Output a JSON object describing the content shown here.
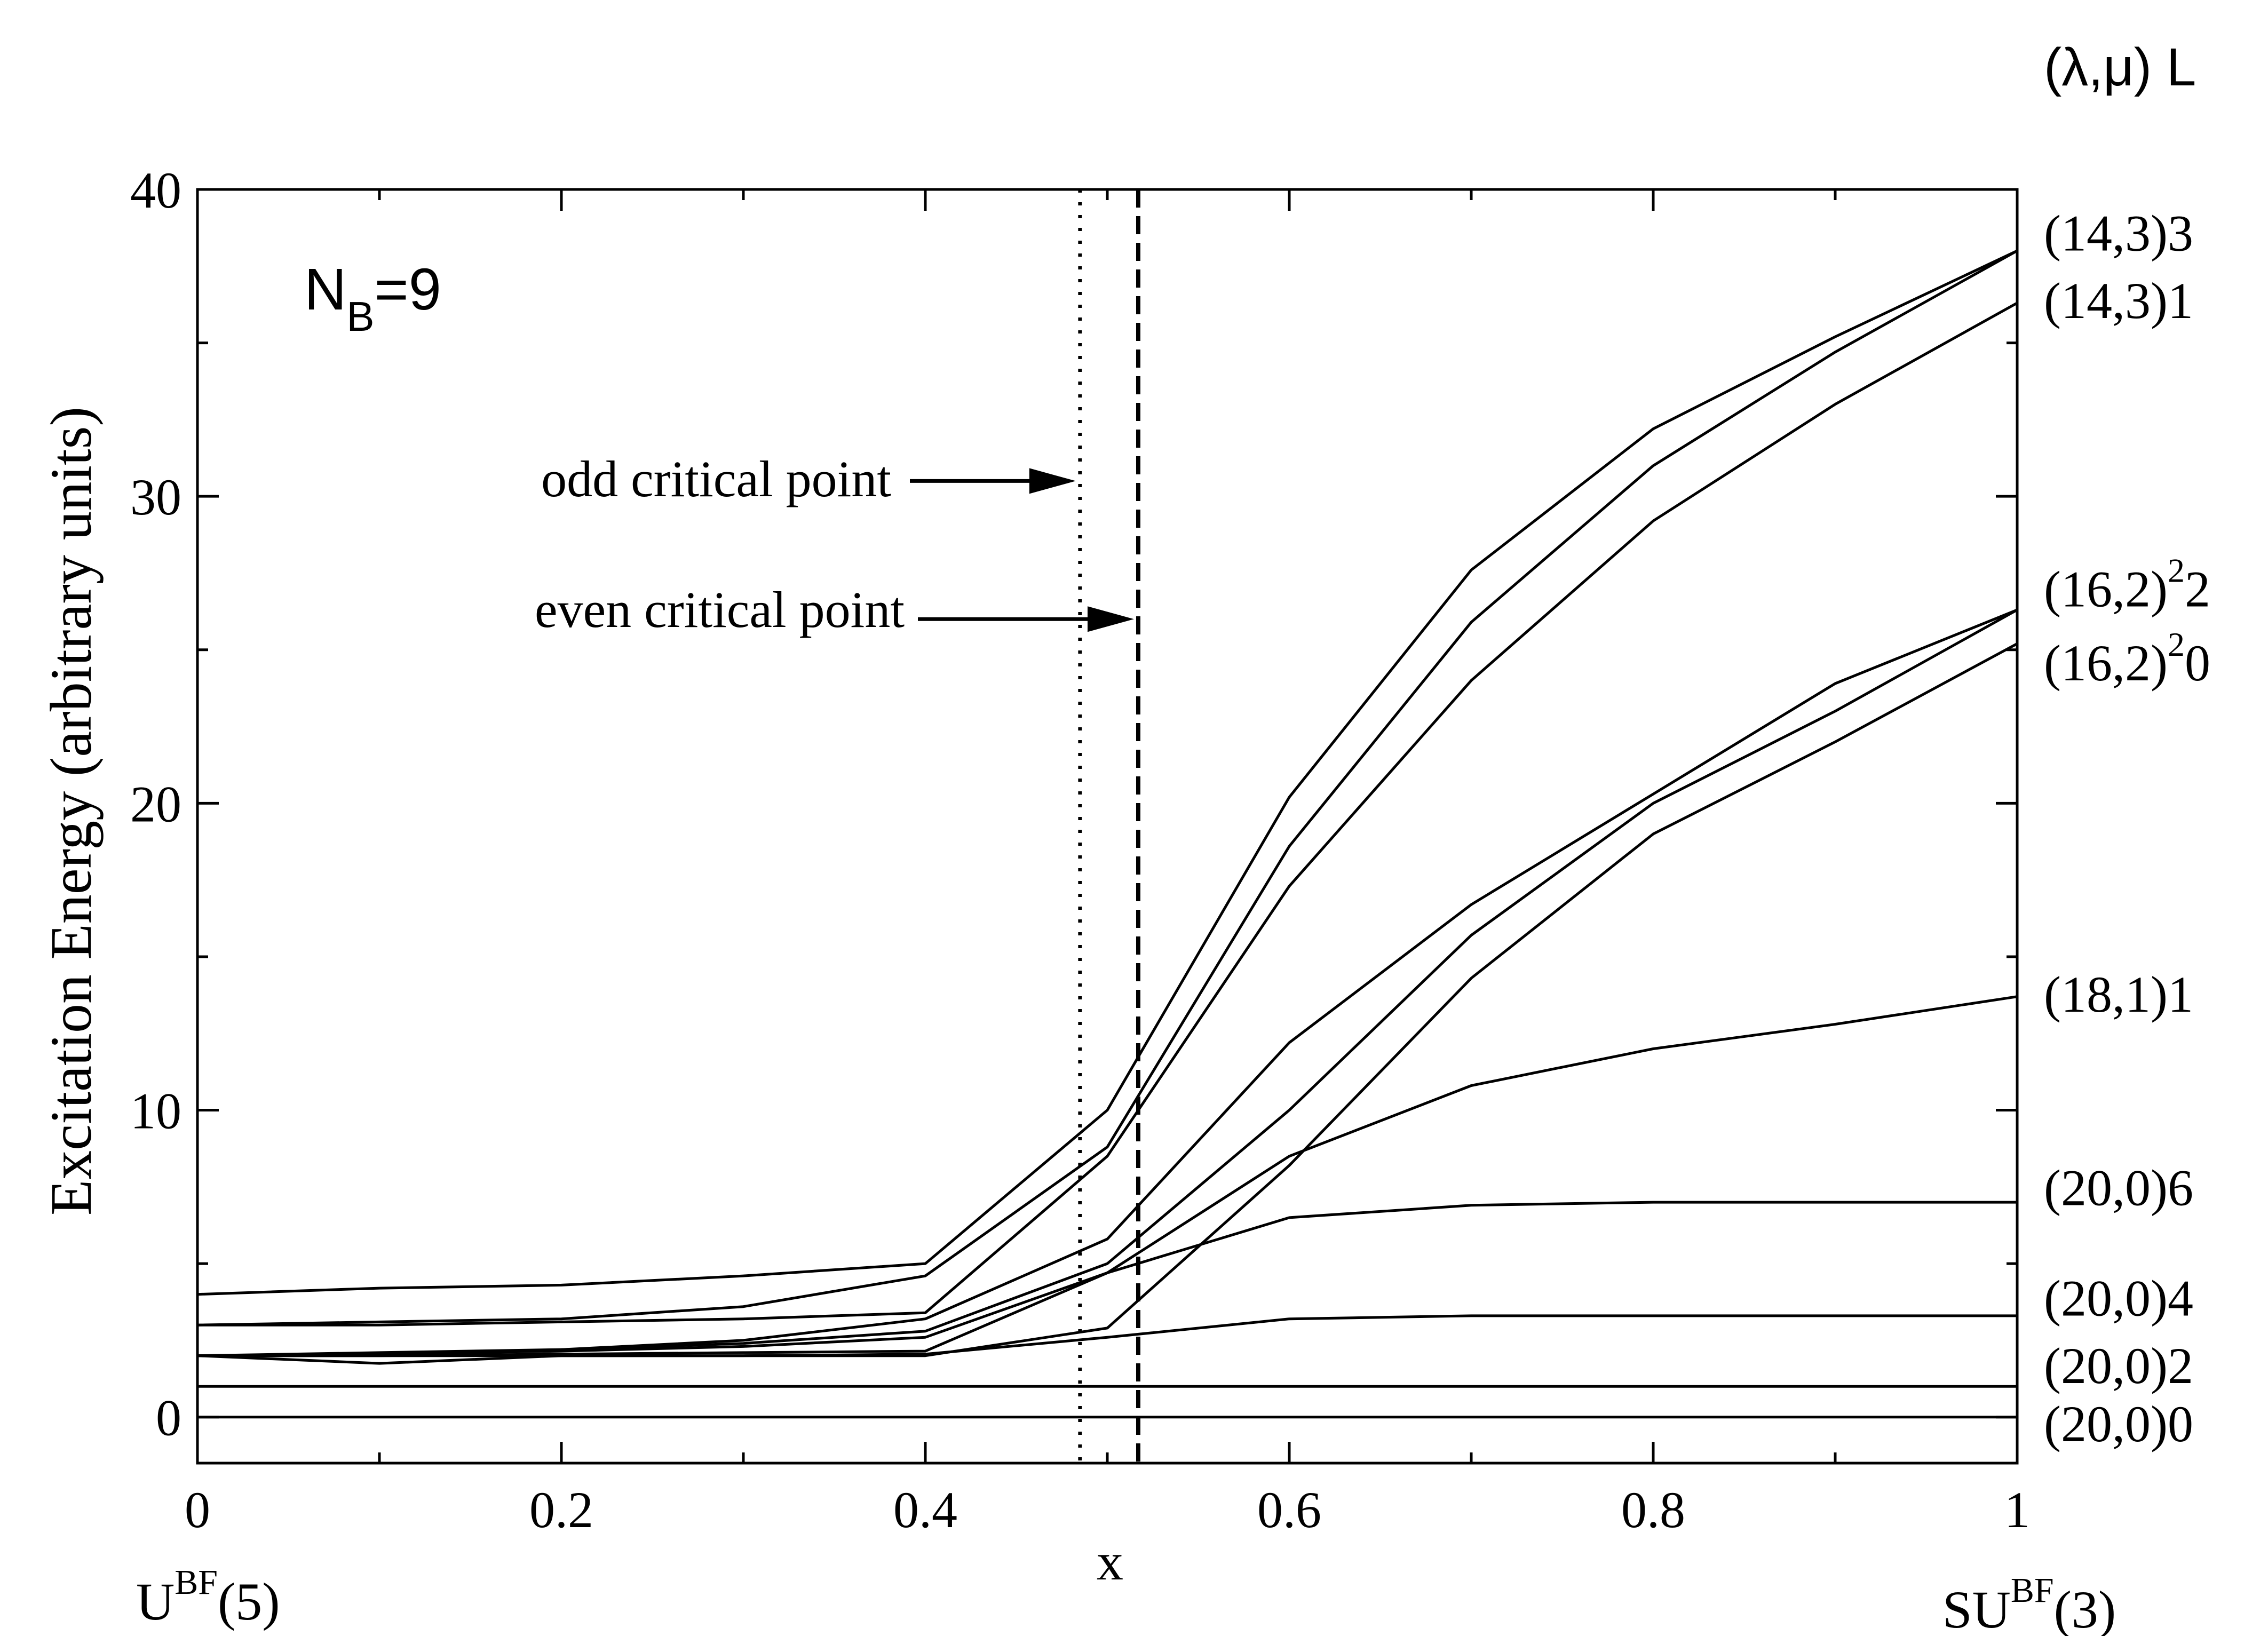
{
  "chart_data": {
    "type": "line",
    "xlabel": "x",
    "ylabel": "Excitation Energy  (arbitrary units)",
    "xlim": [
      0,
      1
    ],
    "ylim": [
      -1.5,
      40
    ],
    "x_ticks": [
      0,
      0.2,
      0.4,
      0.6,
      0.8,
      1
    ],
    "x_tick_labels": [
      "0",
      "0.2",
      "0.4",
      "0.6",
      "0.8",
      "1"
    ],
    "y_ticks": [
      0,
      10,
      20,
      30,
      40
    ],
    "y_tick_labels": [
      "0",
      "10",
      "20",
      "30",
      "40"
    ],
    "grid": false,
    "annotation_nb": "N",
    "annotation_nb_sub": "B",
    "annotation_nb_value": "=9",
    "left_limit_main": "U",
    "left_limit_sup": "BF",
    "left_limit_rest": "(5)",
    "right_limit_main": "SU",
    "right_limit_sup": "BF",
    "right_limit_rest": "(3)",
    "label_column_header": "(λ,μ) L",
    "critical_points": [
      {
        "label": "odd critical point",
        "x": 0.485,
        "y_arrow": 30.5,
        "style": "dotted"
      },
      {
        "label": "even critical point",
        "x": 0.517,
        "y_arrow": 26.0,
        "style": "dashed"
      }
    ],
    "x": [
      0,
      0.1,
      0.2,
      0.3,
      0.4,
      0.5,
      0.6,
      0.7,
      0.8,
      0.9,
      1.0
    ],
    "series": [
      {
        "name": "(20,0)0",
        "values": [
          0,
          0,
          0,
          0,
          0,
          0,
          0,
          0,
          0,
          0,
          0
        ]
      },
      {
        "name": "(20,0)2",
        "values": [
          1,
          1,
          1,
          1,
          1,
          1,
          1,
          1,
          1,
          1,
          1
        ]
      },
      {
        "name": "(20,0)4",
        "values": [
          2.0,
          1.75,
          2.0,
          2.0,
          2.05,
          2.6,
          3.2,
          3.3,
          3.3,
          3.3,
          3.3
        ]
      },
      {
        "name": "(20,0)6",
        "values": [
          2.0,
          2.0,
          2.05,
          2.1,
          2.15,
          4.7,
          6.5,
          6.9,
          7.0,
          7.0,
          7.0
        ]
      },
      {
        "name": "(18,1)1",
        "values": [
          2.0,
          2.05,
          2.15,
          2.3,
          2.6,
          4.7,
          8.5,
          10.8,
          12.0,
          12.8,
          13.7
        ]
      },
      {
        "name": "(16,2)20",
        "values": [
          2.0,
          2.0,
          2.0,
          2.0,
          2.0,
          2.9,
          8.2,
          14.3,
          19.0,
          22.0,
          25.2
        ]
      },
      {
        "name": "(16,2)22",
        "values": [
          2.0,
          2.05,
          2.2,
          2.4,
          2.8,
          5.0,
          10.0,
          15.7,
          20.0,
          23.0,
          26.3
        ]
      },
      {
        "name": "series-8",
        "values": [
          2.0,
          2.1,
          2.2,
          2.5,
          3.2,
          5.8,
          12.2,
          16.7,
          20.3,
          23.9,
          26.3
        ]
      },
      {
        "name": "(14,3)1",
        "values": [
          3.0,
          3.0,
          3.1,
          3.2,
          3.4,
          8.5,
          17.3,
          24.0,
          29.2,
          33.0,
          36.3
        ]
      },
      {
        "name": "series-10",
        "values": [
          3.0,
          3.1,
          3.2,
          3.6,
          4.6,
          8.8,
          18.6,
          25.9,
          31.0,
          34.7,
          38.0
        ]
      },
      {
        "name": "(14,3)3",
        "values": [
          4.0,
          4.2,
          4.3,
          4.6,
          5.0,
          10.0,
          20.2,
          27.6,
          32.2,
          35.2,
          38.0
        ]
      }
    ],
    "right_labels": [
      {
        "main": "(14,3)3",
        "sup": "",
        "tail": "",
        "y": 38.6
      },
      {
        "main": "(14,3)1",
        "sup": "",
        "tail": "",
        "y": 36.4
      },
      {
        "main": "(16,2)",
        "sup": "2",
        "tail": "2",
        "y": 27.0
      },
      {
        "main": "(16,2)",
        "sup": "2",
        "tail": "0",
        "y": 24.6
      },
      {
        "main": "(18,1)1",
        "sup": "",
        "tail": "",
        "y": 13.8
      },
      {
        "main": "(20,0)6",
        "sup": "",
        "tail": "",
        "y": 7.5
      },
      {
        "main": "(20,0)4",
        "sup": "",
        "tail": "",
        "y": 3.9
      },
      {
        "main": "(20,0)2",
        "sup": "",
        "tail": "",
        "y": 1.7
      },
      {
        "main": "(20,0)0",
        "sup": "",
        "tail": "",
        "y": -0.2
      }
    ]
  }
}
